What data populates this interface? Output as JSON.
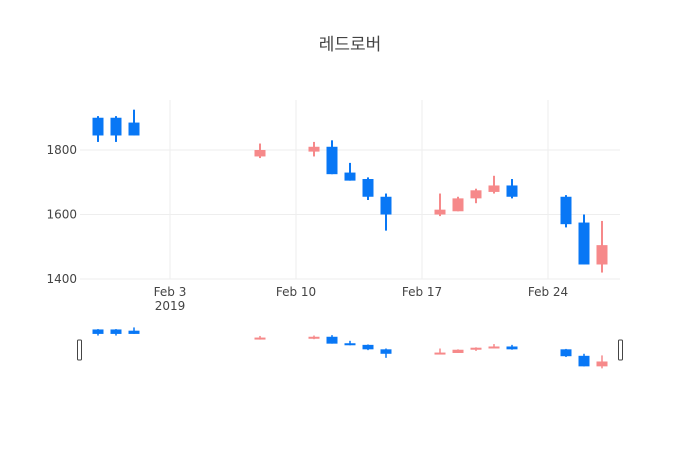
{
  "chart_data": {
    "type": "candlestick",
    "title": "레드로버",
    "xlabel": "",
    "ylabel": "",
    "x_range": [
      "2019-01-29",
      "2019-02-28"
    ],
    "ylim": [
      1400,
      1955
    ],
    "grid": true,
    "range_slider": true,
    "colors": {
      "increasing": "#f6898a",
      "decreasing": "#0877f5"
    },
    "x_ticks": [
      {
        "date": "2019-02-03",
        "label": "Feb 3",
        "sublabel": "2019"
      },
      {
        "date": "2019-02-10",
        "label": "Feb 10",
        "sublabel": ""
      },
      {
        "date": "2019-02-17",
        "label": "Feb 17",
        "sublabel": ""
      },
      {
        "date": "2019-02-24",
        "label": "Feb 24",
        "sublabel": ""
      }
    ],
    "y_ticks": [
      {
        "value": 1400,
        "label": "1400"
      },
      {
        "value": 1600,
        "label": "1600"
      },
      {
        "value": 1800,
        "label": "1800"
      }
    ],
    "candles": [
      {
        "date": "2019-01-30",
        "open": 1900,
        "high": 1905,
        "low": 1825,
        "close": 1845
      },
      {
        "date": "2019-01-31",
        "open": 1900,
        "high": 1905,
        "low": 1825,
        "close": 1845
      },
      {
        "date": "2019-02-01",
        "open": 1885,
        "high": 1925,
        "low": 1845,
        "close": 1845
      },
      {
        "date": "2019-02-08",
        "open": 1780,
        "high": 1820,
        "low": 1775,
        "close": 1800
      },
      {
        "date": "2019-02-11",
        "open": 1795,
        "high": 1825,
        "low": 1780,
        "close": 1810
      },
      {
        "date": "2019-02-12",
        "open": 1810,
        "high": 1830,
        "low": 1725,
        "close": 1725
      },
      {
        "date": "2019-02-13",
        "open": 1730,
        "high": 1760,
        "low": 1705,
        "close": 1705
      },
      {
        "date": "2019-02-14",
        "open": 1710,
        "high": 1715,
        "low": 1645,
        "close": 1655
      },
      {
        "date": "2019-02-15",
        "open": 1655,
        "high": 1665,
        "low": 1550,
        "close": 1600
      },
      {
        "date": "2019-02-18",
        "open": 1600,
        "high": 1665,
        "low": 1595,
        "close": 1615
      },
      {
        "date": "2019-02-19",
        "open": 1610,
        "high": 1655,
        "low": 1610,
        "close": 1650
      },
      {
        "date": "2019-02-20",
        "open": 1650,
        "high": 1680,
        "low": 1635,
        "close": 1675
      },
      {
        "date": "2019-02-21",
        "open": 1670,
        "high": 1720,
        "low": 1665,
        "close": 1690
      },
      {
        "date": "2019-02-22",
        "open": 1690,
        "high": 1710,
        "low": 1650,
        "close": 1655
      },
      {
        "date": "2019-02-25",
        "open": 1655,
        "high": 1660,
        "low": 1560,
        "close": 1570
      },
      {
        "date": "2019-02-26",
        "open": 1575,
        "high": 1600,
        "low": 1445,
        "close": 1445
      },
      {
        "date": "2019-02-27",
        "open": 1445,
        "high": 1580,
        "low": 1420,
        "close": 1505
      }
    ]
  }
}
